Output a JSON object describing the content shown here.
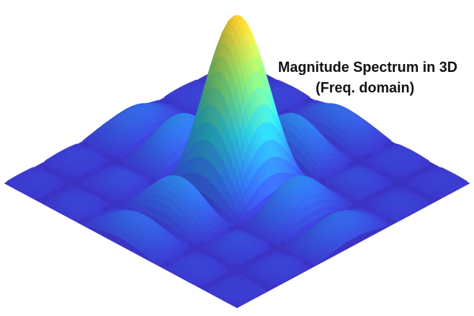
{
  "chart_data": {
    "type": "surface",
    "title": "Magnitude Spectrum in 3D",
    "subtitle": "(Freq. domain)",
    "function": "2D sinc magnitude |sin(u)/u| · |sin(v)/v|",
    "x_range": [
      -9,
      9
    ],
    "y_range": [
      -9,
      9
    ],
    "z_range": [
      0,
      1
    ],
    "peak": {
      "x": 0,
      "y": 0,
      "z": 1.0
    },
    "sidelobe_peak_estimate": 0.22,
    "colormap": [
      "#3a33c4",
      "#2f6fe0",
      "#27b6c9",
      "#7ccf6a",
      "#f2c32a"
    ],
    "grid": false,
    "axes_visible": false
  }
}
